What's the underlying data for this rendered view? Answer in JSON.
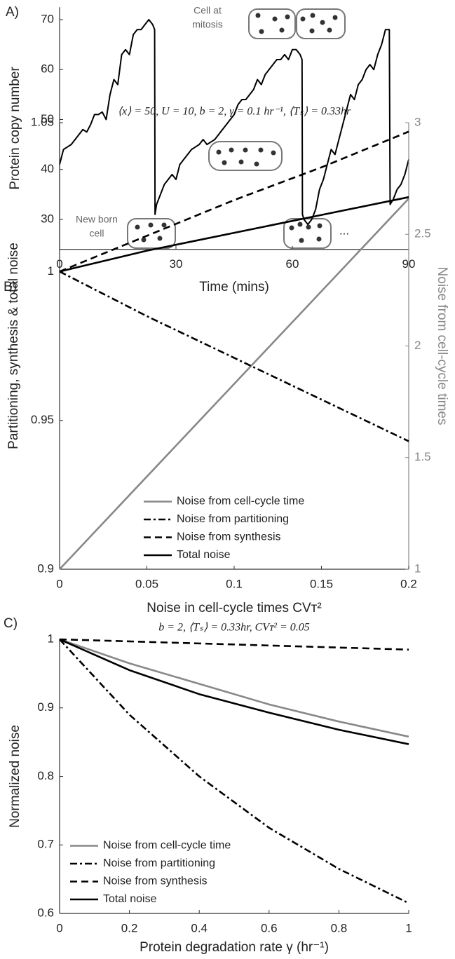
{
  "chart_data": [
    {
      "type": "line",
      "label": "A)",
      "xlabel": "Time (mins)",
      "ylabel": "Protein copy number",
      "x": [
        0,
        1,
        2,
        3,
        4,
        5,
        6,
        7,
        8,
        9,
        10,
        11,
        12,
        13,
        14,
        15,
        16,
        17,
        18,
        19,
        20,
        21,
        22,
        23,
        24,
        24.5,
        24.6,
        25,
        26,
        27,
        28,
        29,
        30,
        31,
        32,
        33,
        34,
        35,
        36,
        37,
        38,
        39,
        40,
        41,
        42,
        43,
        44,
        45,
        46,
        47,
        48,
        49,
        50,
        51,
        52,
        53,
        54,
        55,
        56,
        57,
        58,
        59,
        60,
        61,
        62,
        62.5,
        62.6,
        63,
        64,
        65,
        66,
        67,
        68,
        69,
        70,
        71,
        72,
        73,
        74,
        75,
        76,
        77,
        78,
        79,
        80,
        81,
        82,
        83,
        84,
        85,
        85.2,
        86,
        87,
        88,
        89,
        90
      ],
      "values": [
        41,
        44,
        44.5,
        45,
        46,
        47,
        48,
        47.5,
        49,
        51,
        51,
        51.5,
        50,
        55,
        58,
        57,
        63,
        64,
        63,
        67,
        68,
        68,
        69,
        70,
        69,
        68,
        31,
        33,
        35,
        37,
        38,
        39,
        38,
        41,
        42,
        43,
        44,
        44.5,
        45,
        46,
        45,
        45.5,
        46,
        47,
        48,
        49,
        50,
        51,
        53,
        54,
        54,
        55,
        56,
        58,
        57,
        59,
        60,
        61,
        62,
        62,
        63,
        62,
        64,
        64,
        63,
        62,
        31,
        30,
        29,
        30,
        32,
        36,
        38,
        41,
        44,
        43,
        46,
        49,
        52,
        55,
        54,
        57,
        58,
        60,
        61,
        60,
        63,
        65,
        68,
        68,
        33,
        34,
        36,
        37,
        39,
        42
      ],
      "color": "#000000",
      "xlim": [
        0,
        90
      ],
      "xticks": [
        0,
        30,
        60,
        90
      ],
      "ylim": [
        24,
        72.5
      ],
      "yticks": [
        30,
        40,
        50,
        60,
        70
      ],
      "annotations": [
        [
          "Cell at",
          "mitosis"
        ],
        [
          "New born",
          "cell"
        ],
        [
          "..."
        ]
      ]
    },
    {
      "type": "line",
      "label": "B)",
      "title": "⟨x⟩ = 50, U = 10, b = 2, γ = 0.1 hr⁻¹, ⟨Tₛ⟩ = 0.33hr",
      "xlabel": "Noise in cell-cycle times CVᴛ²",
      "ylabel": "Partitioning, synthesis & total noise",
      "y2label": "Noise from cell-cycle times",
      "x": [
        0,
        0.05,
        0.1,
        0.15,
        0.2
      ],
      "series": [
        {
          "name": "Noise from cell-cycle time",
          "color": "#888888",
          "dash": "solid",
          "axis": "y2",
          "values": [
            1,
            1.415,
            1.83,
            2.245,
            2.66
          ]
        },
        {
          "name": "Noise from partitioning",
          "color": "#000000",
          "dash": "dashdot",
          "values": [
            1,
            0.985,
            0.971,
            0.957,
            0.943
          ]
        },
        {
          "name": "Noise from synthesis",
          "color": "#000000",
          "dash": "dashed",
          "values": [
            1,
            1.012,
            1.024,
            1.035,
            1.047
          ]
        },
        {
          "name": "Total noise",
          "color": "#000000",
          "dash": "solid",
          "values": [
            1,
            1.007,
            1.013,
            1.019,
            1.025
          ]
        }
      ],
      "xlim": [
        0,
        0.2
      ],
      "xticks": [
        0,
        0.05,
        0.1,
        0.15,
        0.2
      ],
      "ylim": [
        0.9,
        1.05
      ],
      "yticks": [
        0.9,
        0.95,
        1,
        1.05
      ],
      "y2lim": [
        1,
        3
      ],
      "y2ticks": [
        1,
        1.5,
        2,
        2.5,
        3
      ],
      "legend": "lower center"
    },
    {
      "type": "line",
      "label": "C)",
      "title": "b = 2, ⟨Tₛ⟩ = 0.33hr, CVᴛ² = 0.05",
      "xlabel": "Protein degradation rate γ (hr⁻¹)",
      "ylabel": "Normalized noise",
      "x": [
        0,
        0.2,
        0.4,
        0.6,
        0.8,
        1
      ],
      "series": [
        {
          "name": "Noise from cell-cycle time",
          "color": "#888888",
          "dash": "solid",
          "values": [
            1,
            0.965,
            0.935,
            0.905,
            0.88,
            0.858
          ]
        },
        {
          "name": "Noise from partitioning",
          "color": "#000000",
          "dash": "dashdot",
          "values": [
            1,
            0.89,
            0.8,
            0.725,
            0.665,
            0.615
          ]
        },
        {
          "name": "Noise from synthesis",
          "color": "#000000",
          "dash": "dashed",
          "values": [
            1,
            0.997,
            0.994,
            0.991,
            0.988,
            0.985
          ]
        },
        {
          "name": "Total noise",
          "color": "#000000",
          "dash": "solid",
          "values": [
            1,
            0.955,
            0.92,
            0.893,
            0.868,
            0.847
          ]
        }
      ],
      "xlim": [
        0,
        1
      ],
      "xticks": [
        0,
        0.2,
        0.4,
        0.6,
        0.8,
        1
      ],
      "ylim": [
        0.6,
        1
      ],
      "yticks": [
        0.6,
        0.7,
        0.8,
        0.9,
        1
      ],
      "legend": "lower left"
    }
  ]
}
